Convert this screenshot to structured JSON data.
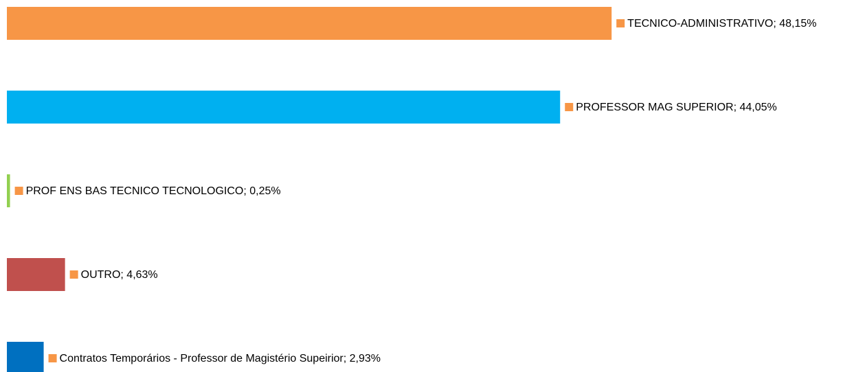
{
  "chart_data": {
    "type": "bar",
    "orientation": "horizontal",
    "values": [
      48.15,
      44.05,
      0.25,
      4.63,
      2.93
    ],
    "value_labels": [
      "TECNICO-ADMINISTRATIVO; 48,15%",
      "PROFESSOR MAG SUPERIOR; 44,05%",
      "PROF ENS BAS TECNICO TECNOLOGICO; 0,25%",
      "OUTRO; 4,63%",
      "Contratos Temporários - Professor de Magistério Supeirior; 2,93%"
    ],
    "colors": [
      "#f79646",
      "#00b0f0",
      "#92d050",
      "#c0504d",
      "#0070c0"
    ],
    "marker_color": "#f79646"
  }
}
